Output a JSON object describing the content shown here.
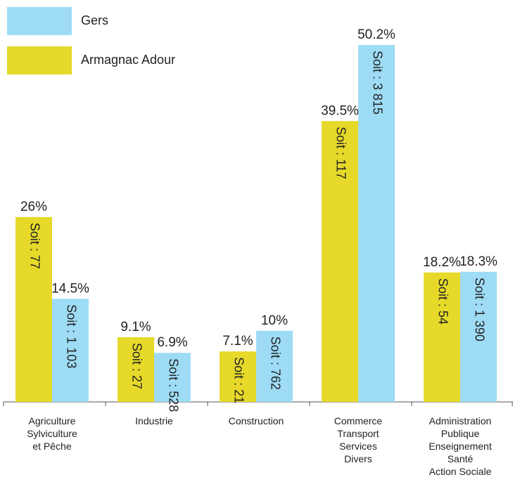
{
  "chart_data": {
    "type": "bar",
    "categories": [
      "Agriculture\nSylviculture\net Pêche",
      "Industrie",
      "Construction",
      "Commerce\nTransport\nServices\nDivers",
      "Administration\nPublique\nEnseignement\nSanté\nAction Sociale"
    ],
    "series": [
      {
        "name": "Armagnac Adour",
        "color": "#e6d92a",
        "values": [
          26,
          9.1,
          7.1,
          39.5,
          18.2
        ],
        "value_labels": [
          "26%",
          "9.1%",
          "7.1%",
          "39.5%",
          "18.2%"
        ],
        "inner_labels": [
          "Soit : 77",
          "Soit : 27",
          "Soit : 21",
          "Soit : 117",
          "Soit : 54"
        ]
      },
      {
        "name": "Gers",
        "color": "#9edcf5",
        "values": [
          14.5,
          6.9,
          10,
          50.2,
          18.3
        ],
        "value_labels": [
          "14.5%",
          "6.9%",
          "10%",
          "50.2%",
          "18.3%"
        ],
        "inner_labels": [
          "Soit : 1 103",
          "Soit : 528",
          "Soit : 762",
          "Soit : 3 815",
          "Soit : 1 390"
        ]
      }
    ]
  }
}
